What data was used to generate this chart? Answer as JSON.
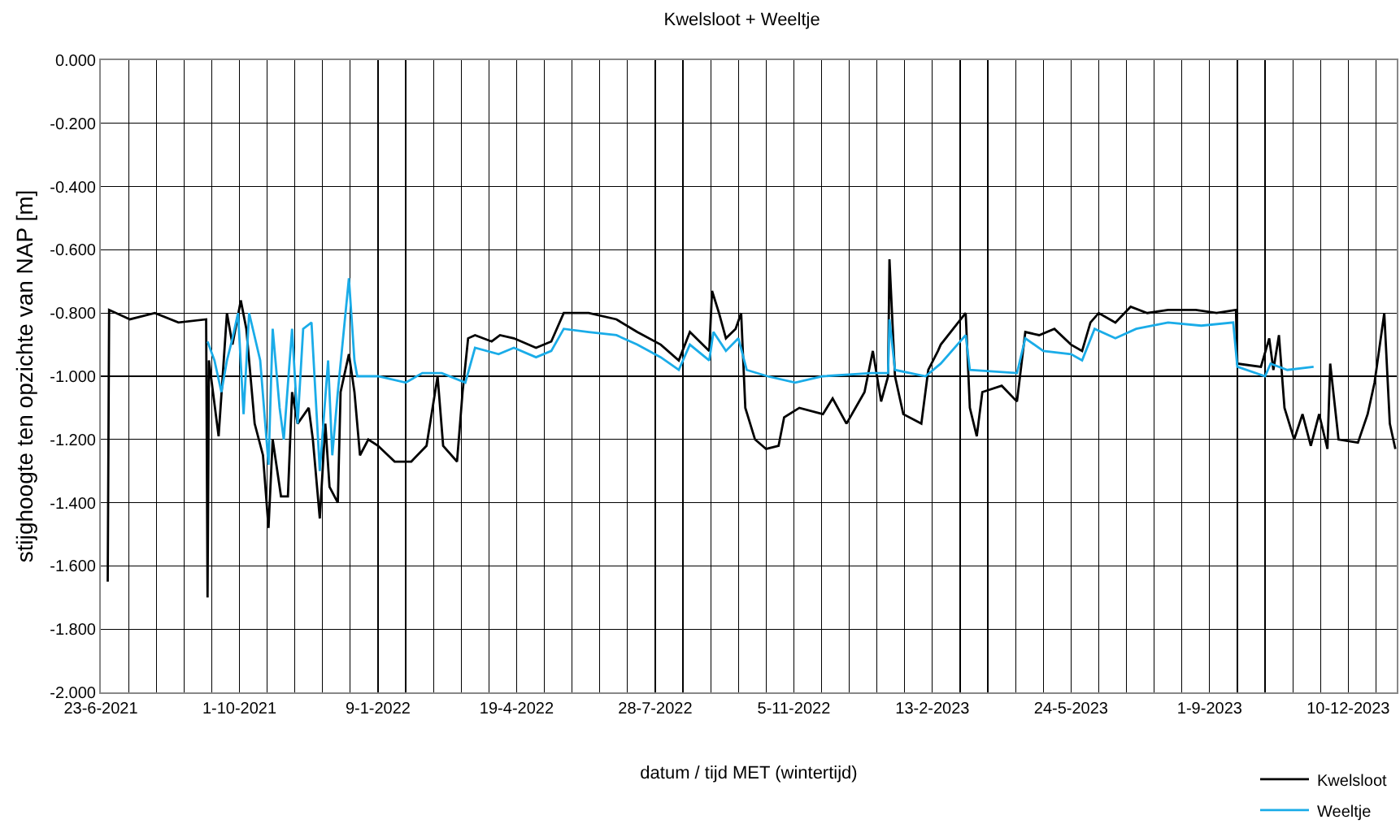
{
  "chart_data": {
    "type": "line",
    "title": "Kwelsloot + Weeltje",
    "xlabel": "datum / tijd MET (wintertijd)",
    "ylabel": "stijghoogte ten opzichte van NAP [m]",
    "xlim": [
      "2021-06-23",
      "2024-01-14"
    ],
    "xticks": [
      {
        "value": "2021-06-23",
        "label": "23-6-2021"
      },
      {
        "value": "2021-07-13",
        "label": null
      },
      {
        "value": "2021-08-02",
        "label": null
      },
      {
        "value": "2021-08-22",
        "label": null
      },
      {
        "value": "2021-09-11",
        "label": null
      },
      {
        "value": "2021-10-01",
        "label": "1-10-2021"
      },
      {
        "value": "2021-10-21",
        "label": null
      },
      {
        "value": "2021-11-10",
        "label": null
      },
      {
        "value": "2021-11-30",
        "label": null
      },
      {
        "value": "2021-12-20",
        "label": null
      },
      {
        "value": "2022-01-09",
        "label": "9-1-2022"
      },
      {
        "value": "2022-01-29",
        "label": null
      },
      {
        "value": "2022-02-18",
        "label": null
      },
      {
        "value": "2022-03-10",
        "label": null
      },
      {
        "value": "2022-03-30",
        "label": null
      },
      {
        "value": "2022-04-19",
        "label": "19-4-2022"
      },
      {
        "value": "2022-05-09",
        "label": null
      },
      {
        "value": "2022-05-29",
        "label": null
      },
      {
        "value": "2022-06-18",
        "label": null
      },
      {
        "value": "2022-07-08",
        "label": null
      },
      {
        "value": "2022-07-28",
        "label": "28-7-2022"
      },
      {
        "value": "2022-08-17",
        "label": null
      },
      {
        "value": "2022-09-06",
        "label": null
      },
      {
        "value": "2022-09-26",
        "label": null
      },
      {
        "value": "2022-10-16",
        "label": null
      },
      {
        "value": "2022-11-05",
        "label": "5-11-2022"
      },
      {
        "value": "2022-11-25",
        "label": null
      },
      {
        "value": "2022-12-15",
        "label": null
      },
      {
        "value": "2023-01-04",
        "label": null
      },
      {
        "value": "2023-01-24",
        "label": null
      },
      {
        "value": "2023-02-13",
        "label": "13-2-2023"
      },
      {
        "value": "2023-03-05",
        "label": null
      },
      {
        "value": "2023-03-25",
        "label": null
      },
      {
        "value": "2023-04-14",
        "label": null
      },
      {
        "value": "2023-05-04",
        "label": null
      },
      {
        "value": "2023-05-24",
        "label": "24-5-2023"
      },
      {
        "value": "2023-06-13",
        "label": null
      },
      {
        "value": "2023-07-03",
        "label": null
      },
      {
        "value": "2023-07-23",
        "label": null
      },
      {
        "value": "2023-08-12",
        "label": null
      },
      {
        "value": "2023-09-01",
        "label": "1-9-2023"
      },
      {
        "value": "2023-09-21",
        "label": null
      },
      {
        "value": "2023-10-11",
        "label": null
      },
      {
        "value": "2023-10-31",
        "label": null
      },
      {
        "value": "2023-11-20",
        "label": null
      },
      {
        "value": "2023-12-10",
        "label": "10-12-2023"
      },
      {
        "value": "2023-12-30",
        "label": null
      }
    ],
    "ylim": [
      -2,
      0
    ],
    "yticks": [
      {
        "value": 0,
        "label": "0.000"
      },
      {
        "value": -0.2,
        "label": "-0.200"
      },
      {
        "value": -0.4,
        "label": "-0.400"
      },
      {
        "value": -0.6,
        "label": "-0.600"
      },
      {
        "value": -0.8,
        "label": "-0.800"
      },
      {
        "value": -1,
        "label": "-1.000"
      },
      {
        "value": -1.2,
        "label": "-1.200"
      },
      {
        "value": -1.4,
        "label": "-1.400"
      },
      {
        "value": -1.6,
        "label": "-1.600"
      },
      {
        "value": -1.8,
        "label": "-1.800"
      },
      {
        "value": -2,
        "label": "-2.000"
      }
    ],
    "grid": true,
    "legend": "bottom right",
    "marker": "none",
    "line_style": "solid",
    "series": [
      {
        "name": "Kwelsloot",
        "color": "#000000",
        "x": [
          "2021-06-28",
          "2021-06-29",
          "2021-07-14",
          "2021-08-01",
          "2021-08-18",
          "2021-09-07",
          "2021-09-08",
          "2021-09-09",
          "2021-09-16",
          "2021-09-22",
          "2021-09-26",
          "2021-10-02",
          "2021-10-06",
          "2021-10-12",
          "2021-10-18",
          "2021-10-22",
          "2021-10-25",
          "2021-10-31",
          "2021-11-05",
          "2021-11-08",
          "2021-11-12",
          "2021-11-20",
          "2021-11-23",
          "2021-11-28",
          "2021-12-02",
          "2021-12-05",
          "2021-12-11",
          "2021-12-13",
          "2021-12-19",
          "2021-12-23",
          "2021-12-27",
          "2022-01-02",
          "2022-01-09",
          "2022-01-21",
          "2022-02-02",
          "2022-02-13",
          "2022-02-21",
          "2022-02-25",
          "2022-03-07",
          "2022-03-11",
          "2022-03-15",
          "2022-03-20",
          "2022-04-01",
          "2022-04-07",
          "2022-04-17",
          "2022-05-03",
          "2022-05-14",
          "2022-05-23",
          "2022-06-10",
          "2022-06-30",
          "2022-07-15",
          "2022-08-01",
          "2022-08-14",
          "2022-08-22",
          "2022-09-05",
          "2022-09-07",
          "2022-09-12",
          "2022-09-17",
          "2022-09-24",
          "2022-09-28",
          "2022-10-01",
          "2022-10-08",
          "2022-10-16",
          "2022-10-25",
          "2022-10-29",
          "2022-11-09",
          "2022-11-26",
          "2022-12-03",
          "2022-12-13",
          "2022-12-26",
          "2023-01-01",
          "2023-01-07",
          "2023-01-12",
          "2023-01-13",
          "2023-01-17",
          "2023-01-23",
          "2023-02-05",
          "2023-02-10",
          "2023-02-17",
          "2023-02-19",
          "2023-03-09",
          "2023-03-12",
          "2023-03-17",
          "2023-03-21",
          "2023-04-04",
          "2023-04-15",
          "2023-04-21",
          "2023-05-01",
          "2023-05-12",
          "2023-05-24",
          "2023-06-01",
          "2023-06-07",
          "2023-06-13",
          "2023-06-25",
          "2023-07-06",
          "2023-07-18",
          "2023-08-02",
          "2023-08-22",
          "2023-09-06",
          "2023-09-20",
          "2023-09-21",
          "2023-10-08",
          "2023-10-14",
          "2023-10-17",
          "2023-10-21",
          "2023-10-25",
          "2023-11-01",
          "2023-11-07",
          "2023-11-13",
          "2023-11-19",
          "2023-11-25",
          "2023-11-27",
          "2023-12-03",
          "2023-12-17",
          "2023-12-24",
          "2023-12-29",
          "2024-01-05",
          "2024-01-09",
          "2024-01-13"
        ],
        "values": [
          -1.65,
          -0.79,
          -0.82,
          -0.8,
          -0.83,
          -0.82,
          -1.7,
          -0.95,
          -1.19,
          -0.8,
          -0.9,
          -0.76,
          -0.85,
          -1.15,
          -1.25,
          -1.48,
          -1.2,
          -1.38,
          -1.38,
          -1.05,
          -1.15,
          -1.1,
          -1.2,
          -1.45,
          -1.15,
          -1.35,
          -1.4,
          -1.05,
          -0.93,
          -1.05,
          -1.25,
          -1.2,
          -1.22,
          -1.27,
          -1.27,
          -1.22,
          -1.0,
          -1.22,
          -1.27,
          -1.05,
          -0.88,
          -0.87,
          -0.89,
          -0.87,
          -0.88,
          -0.91,
          -0.89,
          -0.8,
          -0.8,
          -0.82,
          -0.86,
          -0.9,
          -0.95,
          -0.86,
          -0.92,
          -0.73,
          -0.8,
          -0.88,
          -0.85,
          -0.8,
          -1.1,
          -1.2,
          -1.23,
          -1.22,
          -1.13,
          -1.1,
          -1.12,
          -1.07,
          -1.15,
          -1.05,
          -0.92,
          -1.08,
          -1.0,
          -0.63,
          -1.0,
          -1.12,
          -1.15,
          -0.98,
          -0.92,
          -0.9,
          -0.8,
          -1.1,
          -1.19,
          -1.05,
          -1.03,
          -1.08,
          -0.86,
          -0.87,
          -0.85,
          -0.9,
          -0.92,
          -0.83,
          -0.8,
          -0.83,
          -0.78,
          -0.8,
          -0.79,
          -0.79,
          -0.8,
          -0.79,
          -0.96,
          -0.97,
          -0.88,
          -0.98,
          -0.87,
          -1.1,
          -1.2,
          -1.12,
          -1.22,
          -1.12,
          -1.23,
          -0.96,
          -1.2,
          -1.21,
          -1.12,
          -1.02,
          -0.8,
          -1.15,
          -1.23
        ]
      },
      {
        "name": "Weeltje",
        "color": "#1aace8",
        "x": [
          "2021-09-08",
          "2021-09-13",
          "2021-09-18",
          "2021-09-22",
          "2021-09-26",
          "2021-09-30",
          "2021-10-04",
          "2021-10-08",
          "2021-10-16",
          "2021-10-22",
          "2021-10-25",
          "2021-10-30",
          "2021-11-02",
          "2021-11-08",
          "2021-11-12",
          "2021-11-16",
          "2021-11-22",
          "2021-11-28",
          "2021-12-04",
          "2021-12-07",
          "2021-12-11",
          "2021-12-19",
          "2021-12-23",
          "2021-12-25",
          "2022-01-09",
          "2022-01-29",
          "2022-02-10",
          "2022-02-24",
          "2022-03-13",
          "2022-03-20",
          "2022-04-06",
          "2022-04-17",
          "2022-05-03",
          "2022-05-14",
          "2022-05-23",
          "2022-06-10",
          "2022-06-30",
          "2022-07-15",
          "2022-08-01",
          "2022-08-14",
          "2022-08-22",
          "2022-09-05",
          "2022-09-08",
          "2022-09-17",
          "2022-09-26",
          "2022-10-02",
          "2022-10-17",
          "2022-11-06",
          "2022-11-26",
          "2022-12-31",
          "2023-01-12",
          "2023-01-13",
          "2023-01-17",
          "2023-02-08",
          "2023-02-19",
          "2023-03-09",
          "2023-03-12",
          "2023-04-15",
          "2023-04-21",
          "2023-05-04",
          "2023-05-24",
          "2023-06-01",
          "2023-06-10",
          "2023-06-25",
          "2023-07-10",
          "2023-08-02",
          "2023-08-26",
          "2023-09-18",
          "2023-09-21",
          "2023-10-11",
          "2023-10-15",
          "2023-10-27",
          "2023-11-15"
        ],
        "values": [
          -0.89,
          -0.95,
          -1.05,
          -0.95,
          -0.88,
          -0.8,
          -1.12,
          -0.8,
          -0.95,
          -1.28,
          -0.85,
          -1.1,
          -1.2,
          -0.85,
          -1.15,
          -0.85,
          -0.83,
          -1.3,
          -0.95,
          -1.25,
          -1.05,
          -0.69,
          -0.95,
          -1.0,
          -1.0,
          -1.02,
          -0.99,
          -0.99,
          -1.02,
          -0.91,
          -0.93,
          -0.91,
          -0.94,
          -0.92,
          -0.85,
          -0.86,
          -0.87,
          -0.9,
          -0.94,
          -0.98,
          -0.9,
          -0.95,
          -0.86,
          -0.92,
          -0.88,
          -0.98,
          -1.0,
          -1.02,
          -1.0,
          -0.99,
          -0.99,
          -0.82,
          -0.98,
          -1.0,
          -0.96,
          -0.87,
          -0.98,
          -0.99,
          -0.88,
          -0.92,
          -0.93,
          -0.95,
          -0.85,
          -0.88,
          -0.85,
          -0.83,
          -0.84,
          -0.83,
          -0.97,
          -1.0,
          -0.96,
          -0.98,
          -0.97
        ]
      }
    ]
  }
}
